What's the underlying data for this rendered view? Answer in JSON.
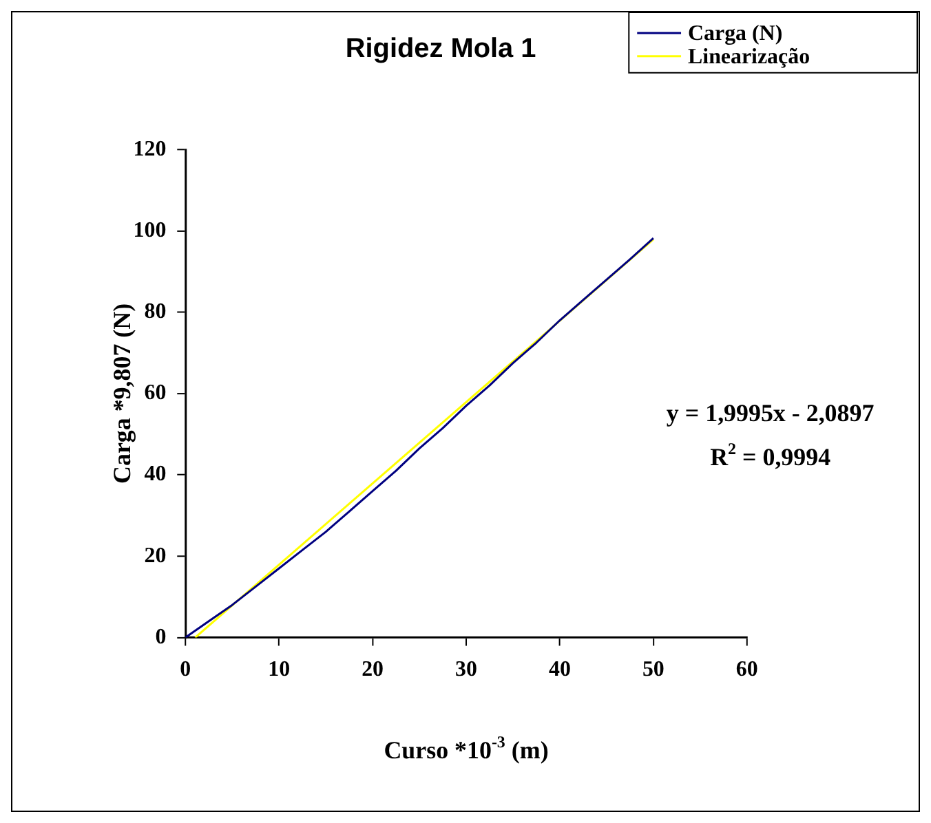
{
  "chart_data": {
    "type": "line",
    "title": "Rigidez Mola 1",
    "xlabel": "Curso *10$^{-3}$ (m)",
    "ylabel": "Carga *9,807 (N)",
    "xlim": [
      0,
      60
    ],
    "xticks": [
      0,
      10,
      20,
      30,
      40,
      50,
      60
    ],
    "ylim": [
      0,
      120
    ],
    "yticks": [
      0,
      20,
      40,
      60,
      80,
      100,
      120
    ],
    "grid": false,
    "legend": "top right",
    "marker": "none",
    "series": [
      {
        "name": "Carga (N)",
        "color": "#000080",
        "x": [
          0,
          2.5,
          5,
          7.5,
          10,
          12.5,
          15,
          17.5,
          20,
          22.5,
          25,
          27.5,
          30,
          32.5,
          35,
          37.5,
          40,
          42.5,
          45,
          47.5,
          50
        ],
        "values": [
          0,
          4,
          8,
          12.5,
          17,
          21.5,
          26,
          31,
          36,
          41,
          46.5,
          51.5,
          57,
          62,
          67.5,
          72.5,
          78,
          83,
          88,
          93,
          98.2
        ]
      },
      {
        "name": "Linearização",
        "color": "#ffff00",
        "x": [
          1.05,
          50
        ],
        "values": [
          0,
          97.9
        ]
      }
    ],
    "annotations": [
      "y = 1,9995x - 2,0897",
      "R$^{2}$ = 0,9994"
    ]
  }
}
